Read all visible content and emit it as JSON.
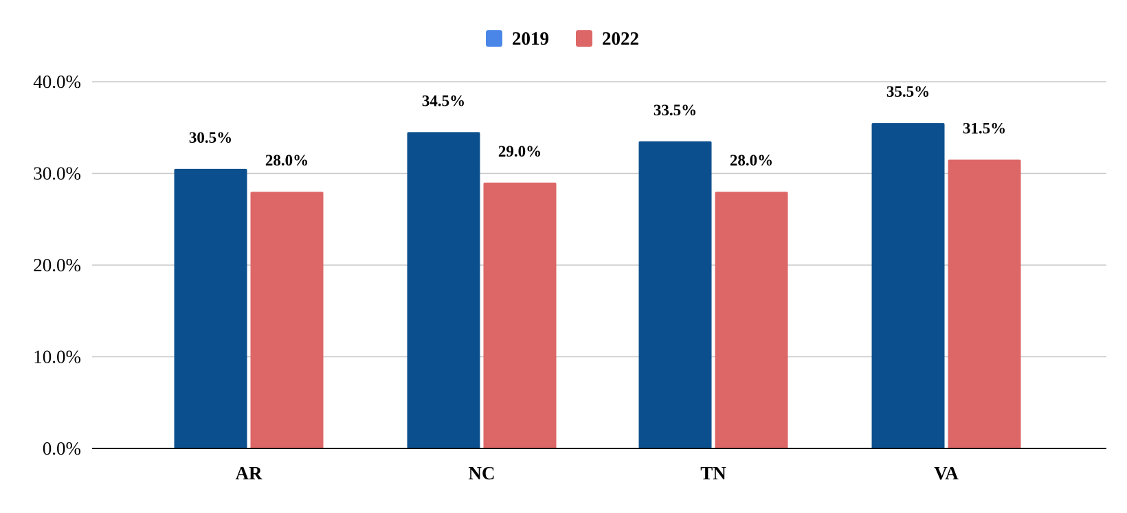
{
  "chart_data": {
    "type": "bar",
    "title": "",
    "xlabel": "",
    "ylabel": "",
    "categories": [
      "AR",
      "NC",
      "TN",
      "VA"
    ],
    "series": [
      {
        "name": "2019",
        "color": "#0b4f8e",
        "legend_color": "#4a86e8",
        "values": [
          30.5,
          34.5,
          33.5,
          35.5
        ],
        "labels": [
          "30.5%",
          "34.5%",
          "33.5%",
          "35.5%"
        ]
      },
      {
        "name": "2022",
        "color": "#dd6666",
        "legend_color": "#dd6666",
        "values": [
          28.0,
          29.0,
          28.0,
          31.5
        ],
        "labels": [
          "28.0%",
          "29.0%",
          "28.0%",
          "31.5%"
        ]
      }
    ],
    "ylim": [
      0,
      40
    ],
    "yticks": [
      0,
      10,
      20,
      30,
      40
    ],
    "ytick_labels": [
      "0.0%",
      "10.0%",
      "20.0%",
      "30.0%",
      "40.0%"
    ],
    "grid": true,
    "legend_position": "top-center"
  }
}
